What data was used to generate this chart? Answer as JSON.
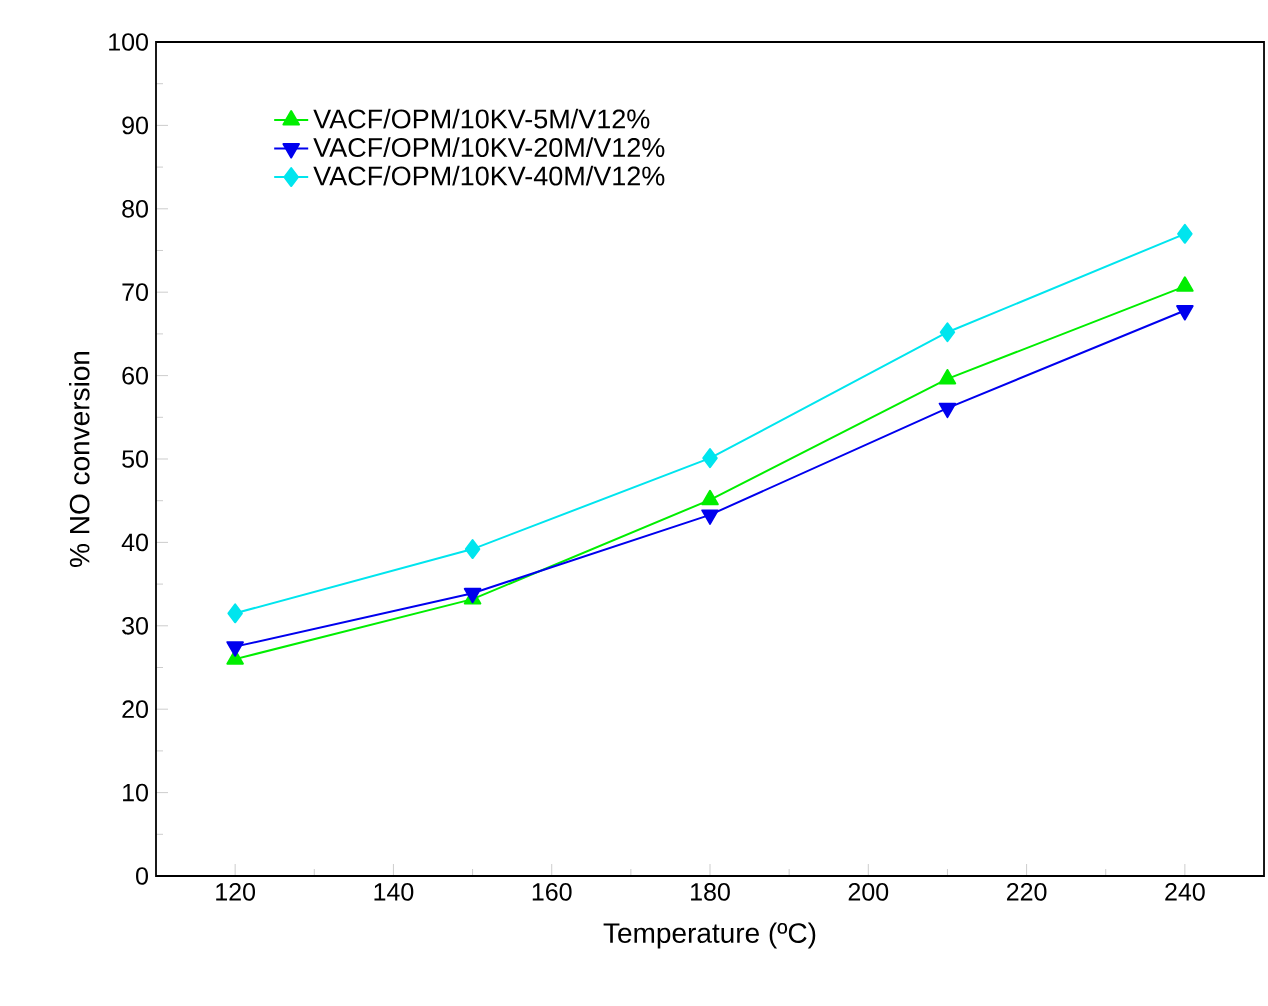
{
  "chart_data": {
    "type": "line",
    "xlabel": "Temperature (ºC)",
    "ylabel": "% NO conversion",
    "x": [
      120,
      150,
      180,
      210,
      240
    ],
    "series": [
      {
        "name": "VACF/OPM/10KV-5M/V12%",
        "color": "#00ee00",
        "marker": "triangle",
        "values": [
          26.0,
          33.2,
          45.1,
          59.6,
          70.7
        ]
      },
      {
        "name": "VACF/OPM/10KV-20M/V12%",
        "color": "#0000ee",
        "marker": "triangle-down",
        "values": [
          27.5,
          33.9,
          43.3,
          56.1,
          67.8
        ]
      },
      {
        "name": "VACF/OPM/10KV-40M/V12%",
        "color": "#00e5ee",
        "marker": "diamond",
        "values": [
          31.5,
          39.2,
          50.1,
          65.2,
          77.0
        ]
      }
    ],
    "xlim": [
      110,
      250
    ],
    "ylim": [
      0,
      100
    ],
    "xticks": [
      120,
      140,
      160,
      180,
      200,
      220,
      240
    ],
    "yticks": [
      0,
      10,
      20,
      30,
      40,
      50,
      60,
      70,
      80,
      90,
      100
    ],
    "grid": false,
    "legend": "top left",
    "line_style": "solid"
  }
}
